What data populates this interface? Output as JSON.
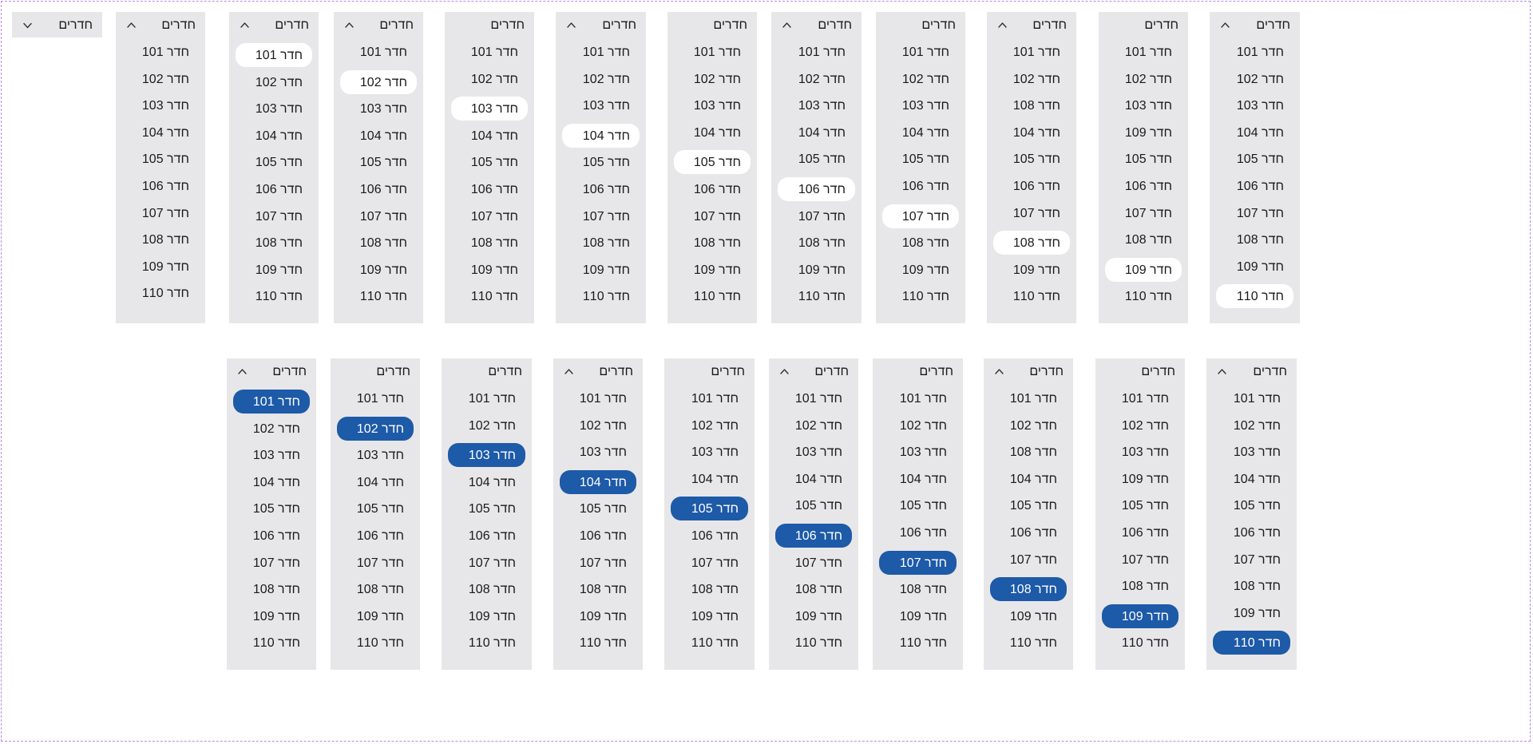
{
  "dropdowns": [
    {
      "id": "closed",
      "label": "חדרים",
      "open": false,
      "items": []
    },
    {
      "id": "r1c1",
      "label": "חדרים",
      "open": true,
      "chevron": true,
      "highlight": "none",
      "active": -1,
      "items": [
        "חדר 101",
        "חדר 102",
        "חדר 103",
        "חדר 104",
        "חדר 105",
        "חדר 106",
        "חדר 107",
        "חדר 108",
        "חדר 109",
        "חדר 110"
      ]
    },
    {
      "id": "r1c2",
      "label": "חדרים",
      "open": true,
      "chevron": true,
      "highlight": "hover",
      "active": 0,
      "items": [
        "חדר 101",
        "חדר 102",
        "חדר 103",
        "חדר 104",
        "חדר 105",
        "חדר 106",
        "חדר 107",
        "חדר 108",
        "חדר 109",
        "חדר 110"
      ]
    },
    {
      "id": "r1c3",
      "label": "חדרים",
      "open": true,
      "chevron": true,
      "highlight": "hover",
      "active": 1,
      "items": [
        "חדר 101",
        "חדר 102",
        "חדר 103",
        "חדר 104",
        "חדר 105",
        "חדר 106",
        "חדר 107",
        "חדר 108",
        "חדר 109",
        "חדר 110"
      ]
    },
    {
      "id": "r1c4",
      "label": "חדרים",
      "open": true,
      "chevron": false,
      "highlight": "hover",
      "active": 2,
      "items": [
        "חדר 101",
        "חדר 102",
        "חדר 103",
        "חדר 104",
        "חדר 105",
        "חדר 106",
        "חדר 107",
        "חדר 108",
        "חדר 109",
        "חדר 110"
      ]
    },
    {
      "id": "r1c5",
      "label": "חדרים",
      "open": true,
      "chevron": true,
      "highlight": "hover",
      "active": 3,
      "items": [
        "חדר 101",
        "חדר 102",
        "חדר 103",
        "חדר 104",
        "חדר 105",
        "חדר 106",
        "חדר 107",
        "חדר 108",
        "חדר 109",
        "חדר 110"
      ]
    },
    {
      "id": "r1c6",
      "label": "חדרים",
      "open": true,
      "chevron": false,
      "highlight": "hover",
      "active": 4,
      "items": [
        "חדר 101",
        "חדר 102",
        "חדר 103",
        "חדר 104",
        "חדר 105",
        "חדר 106",
        "חדר 107",
        "חדר 108",
        "חדר 109",
        "חדר 110"
      ]
    },
    {
      "id": "r1c7",
      "label": "חדרים",
      "open": true,
      "chevron": true,
      "highlight": "hover",
      "active": 5,
      "items": [
        "חדר 101",
        "חדר 102",
        "חדר 103",
        "חדר 104",
        "חדר 105",
        "חדר 106",
        "חדר 107",
        "חדר 108",
        "חדר 109",
        "חדר 110"
      ]
    },
    {
      "id": "r1c8",
      "label": "חדרים",
      "open": true,
      "chevron": false,
      "highlight": "hover",
      "active": 6,
      "items": [
        "חדר 101",
        "חדר 102",
        "חדר 103",
        "חדר 104",
        "חדר 105",
        "חדר 106",
        "חדר 107",
        "חדר 108",
        "חדר 109",
        "חדר 110"
      ]
    },
    {
      "id": "r1c9",
      "label": "חדרים",
      "open": true,
      "chevron": true,
      "highlight": "hover",
      "active": 7,
      "items": [
        "חדר 101",
        "חדר 102",
        "חדר 108",
        "חדר 104",
        "חדר 105",
        "חדר 106",
        "חדר 107",
        "חדר 108",
        "חדר 109",
        "חדר 110"
      ]
    },
    {
      "id": "r1c10",
      "label": "חדרים",
      "open": true,
      "chevron": false,
      "highlight": "hover",
      "active": 8,
      "items": [
        "חדר 101",
        "חדר 102",
        "חדר 103",
        "חדר 109",
        "חדר 105",
        "חדר 106",
        "חדר 107",
        "חדר 108",
        "חדר 109",
        "חדר 110"
      ]
    },
    {
      "id": "r1c11",
      "label": "חדרים",
      "open": true,
      "chevron": true,
      "highlight": "hover",
      "active": 9,
      "items": [
        "חדר 101",
        "חדר 102",
        "חדר 103",
        "חדר 104",
        "חדר 105",
        "חדר 106",
        "חדר 107",
        "חדר 108",
        "חדר 109",
        "חדר 110"
      ]
    },
    {
      "id": "r2c1",
      "label": "חדרים",
      "open": true,
      "chevron": true,
      "highlight": "selected",
      "active": 0,
      "items": [
        "חדר 101",
        "חדר 102",
        "חדר 103",
        "חדר 104",
        "חדר 105",
        "חדר 106",
        "חדר 107",
        "חדר 108",
        "חדר 109",
        "חדר 110"
      ]
    },
    {
      "id": "r2c2",
      "label": "חדרים",
      "open": true,
      "chevron": false,
      "highlight": "selected",
      "active": 1,
      "items": [
        "חדר 101",
        "חדר 102",
        "חדר 103",
        "חדר 104",
        "חדר 105",
        "חדר 106",
        "חדר 107",
        "חדר 108",
        "חדר 109",
        "חדר 110"
      ]
    },
    {
      "id": "r2c3",
      "label": "חדרים",
      "open": true,
      "chevron": false,
      "highlight": "selected",
      "active": 2,
      "items": [
        "חדר 101",
        "חדר 102",
        "חדר 103",
        "חדר 104",
        "חדר 105",
        "חדר 106",
        "חדר 107",
        "חדר 108",
        "חדר 109",
        "חדר 110"
      ]
    },
    {
      "id": "r2c4",
      "label": "חדרים",
      "open": true,
      "chevron": true,
      "highlight": "selected",
      "active": 3,
      "items": [
        "חדר 101",
        "חדר 102",
        "חדר 103",
        "חדר 104",
        "חדר 105",
        "חדר 106",
        "חדר 107",
        "חדר 108",
        "חדר 109",
        "חדר 110"
      ]
    },
    {
      "id": "r2c5",
      "label": "חדרים",
      "open": true,
      "chevron": false,
      "highlight": "selected",
      "active": 4,
      "items": [
        "חדר 101",
        "חדר 102",
        "חדר 103",
        "חדר 104",
        "חדר 105",
        "חדר 106",
        "חדר 107",
        "חדר 108",
        "חדר 109",
        "חדר 110"
      ]
    },
    {
      "id": "r2c6",
      "label": "חדרים",
      "open": true,
      "chevron": true,
      "highlight": "selected",
      "active": 5,
      "items": [
        "חדר 101",
        "חדר 102",
        "חדר 103",
        "חדר 104",
        "חדר 105",
        "חדר 106",
        "חדר 107",
        "חדר 108",
        "חדר 109",
        "חדר 110"
      ]
    },
    {
      "id": "r2c7",
      "label": "חדרים",
      "open": true,
      "chevron": false,
      "highlight": "selected",
      "active": 6,
      "items": [
        "חדר 101",
        "חדר 102",
        "חדר 103",
        "חדר 104",
        "חדר 105",
        "חדר 106",
        "חדר 107",
        "חדר 108",
        "חדר 109",
        "חדר 110"
      ]
    },
    {
      "id": "r2c8",
      "label": "חדרים",
      "open": true,
      "chevron": true,
      "highlight": "selected",
      "active": 7,
      "items": [
        "חדר 101",
        "חדר 102",
        "חדר 108",
        "חדר 104",
        "חדר 105",
        "חדר 106",
        "חדר 107",
        "חדר 108",
        "חדר 109",
        "חדר 110"
      ]
    },
    {
      "id": "r2c9",
      "label": "חדרים",
      "open": true,
      "chevron": false,
      "highlight": "selected",
      "active": 8,
      "items": [
        "חדר 101",
        "חדר 102",
        "חדר 103",
        "חדר 109",
        "חדר 105",
        "חדר 106",
        "חדר 107",
        "חדר 108",
        "חדר 109",
        "חדר 110"
      ]
    },
    {
      "id": "r2c10",
      "label": "חדרים",
      "open": true,
      "chevron": true,
      "highlight": "selected",
      "active": 9,
      "items": [
        "חדר 101",
        "חדר 102",
        "חדר 103",
        "חדר 104",
        "חדר 105",
        "חדר 106",
        "חדר 107",
        "חדר 108",
        "חדר 109",
        "חדר 110"
      ]
    }
  ],
  "colors": {
    "panel": "#e7e7e9",
    "hover": "#ffffff",
    "selected": "#1d5aa8",
    "selected_text": "#ffffff",
    "text": "#1a1a1a"
  },
  "icons": {
    "closed": "chevron-down-icon",
    "open": "chevron-up-icon"
  }
}
